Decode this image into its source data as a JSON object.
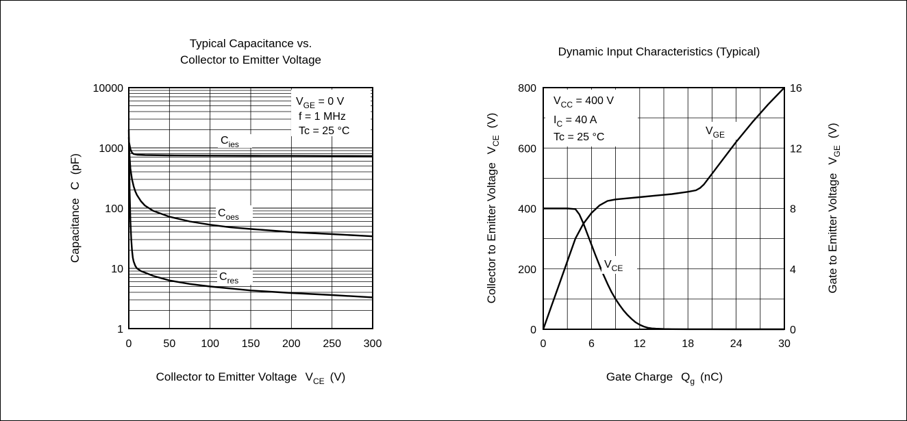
{
  "chart_data": [
    {
      "type": "line",
      "title_line1": "Typical Capacitance vs.",
      "title_line2": "Collector to Emitter Voltage",
      "xlabel": "Collector to Emitter Voltage",
      "xlabel_symbol": "V",
      "xlabel_symbol_sub": "CE",
      "xlabel_unit": "(V)",
      "ylabel": "Capacitance",
      "ylabel_symbol": "C",
      "ylabel_unit": "(pF)",
      "y_scale": "log",
      "xlim": [
        0,
        300
      ],
      "ylim": [
        1,
        10000
      ],
      "x_ticks": [
        "0",
        "50",
        "100",
        "150",
        "200",
        "250",
        "300"
      ],
      "y_ticks": [
        "1",
        "10",
        "100",
        "1000",
        "10000"
      ],
      "grid": true,
      "conditions": [
        {
          "main": "V",
          "sub": "GE",
          "rest": " = 0 V"
        },
        {
          "main": "f = 1 MHz",
          "sub": "",
          "rest": ""
        },
        {
          "main": "Tc = 25 °C",
          "sub": "",
          "rest": ""
        }
      ],
      "series": [
        {
          "name": "C",
          "name_sub": "ies",
          "label_x": 125,
          "x": [
            0,
            2,
            4,
            6,
            10,
            20,
            50,
            100,
            150,
            200,
            250,
            300
          ],
          "y": [
            1300,
            950,
            830,
            790,
            770,
            760,
            750,
            745,
            740,
            738,
            735,
            730
          ]
        },
        {
          "name": "C",
          "name_sub": "oes",
          "label_x": 125,
          "x": [
            0,
            1,
            2,
            4,
            6,
            8,
            10,
            15,
            20,
            30,
            50,
            75,
            100,
            125,
            150,
            200,
            250,
            300
          ],
          "y": [
            1500,
            700,
            450,
            300,
            230,
            190,
            165,
            130,
            110,
            90,
            72,
            60,
            53,
            48,
            45,
            40,
            37,
            34
          ]
        },
        {
          "name": "C",
          "name_sub": "res",
          "label_x": 125,
          "x": [
            0,
            0.5,
            1,
            2,
            3,
            4,
            5,
            6,
            8,
            10,
            15,
            20,
            30,
            50,
            75,
            100,
            150,
            200,
            250,
            300
          ],
          "y": [
            2000,
            700,
            200,
            60,
            30,
            20,
            15,
            13,
            11,
            10,
            9,
            8.5,
            7.5,
            6.3,
            5.5,
            5.0,
            4.3,
            3.9,
            3.6,
            3.3
          ]
        }
      ]
    },
    {
      "type": "line",
      "title": "Dynamic Input Characteristics (Typical)",
      "xlabel": "Gate Charge",
      "xlabel_symbol": "Q",
      "xlabel_symbol_sub": "g",
      "xlabel_unit": "(nC)",
      "ylabel_left": "Collector to Emitter Voltage",
      "ylabel_left_symbol": "V",
      "ylabel_left_symbol_sub": "CE",
      "ylabel_left_unit": "(V)",
      "ylabel_right": "Gate to Emitter Voltage",
      "ylabel_right_symbol": "V",
      "ylabel_right_symbol_sub": "GE",
      "ylabel_right_unit": "(V)",
      "xlim": [
        0,
        30
      ],
      "ylim_left": [
        0,
        800
      ],
      "ylim_right": [
        0,
        16
      ],
      "x_ticks": [
        "0",
        "6",
        "12",
        "18",
        "24",
        "30"
      ],
      "y_ticks_left": [
        "0",
        "200",
        "400",
        "600",
        "800"
      ],
      "y_ticks_right": [
        "0",
        "4",
        "8",
        "12",
        "16"
      ],
      "grid": true,
      "conditions": [
        {
          "main": "V",
          "sub": "CC",
          "rest": " = 400 V"
        },
        {
          "main": "I",
          "sub": "C",
          "rest": " = 40 A"
        },
        {
          "main": "Tc = 25 °C",
          "sub": "",
          "rest": ""
        }
      ],
      "series": [
        {
          "name": "V",
          "name_sub": "CE",
          "axis": "left",
          "x": [
            0,
            3,
            4,
            4.5,
            5,
            5.5,
            6,
            6.5,
            7,
            7.5,
            8,
            8.5,
            9,
            9.5,
            10,
            10.5,
            11,
            11.5,
            12,
            12.5,
            13,
            13.5,
            14,
            15,
            16,
            18,
            20,
            24,
            30
          ],
          "y": [
            400,
            400,
            398,
            380,
            350,
            315,
            280,
            245,
            212,
            180,
            150,
            123,
            100,
            80,
            62,
            47,
            34,
            23,
            15,
            9,
            5,
            3,
            2,
            1,
            0.5,
            0.3,
            0.2,
            0.1,
            0
          ]
        },
        {
          "name": "V",
          "name_sub": "GE",
          "axis": "right",
          "x": [
            0,
            1,
            2,
            3,
            4,
            5,
            6,
            7,
            8,
            9,
            10,
            12,
            14,
            16,
            18,
            19,
            19.5,
            20,
            21,
            22,
            24,
            26,
            28,
            30
          ],
          "y": [
            0,
            1.5,
            3.0,
            4.5,
            6.0,
            7.0,
            7.7,
            8.2,
            8.5,
            8.6,
            8.65,
            8.75,
            8.85,
            8.95,
            9.1,
            9.2,
            9.35,
            9.6,
            10.3,
            11.0,
            12.4,
            13.7,
            14.9,
            16.0
          ]
        }
      ]
    }
  ]
}
